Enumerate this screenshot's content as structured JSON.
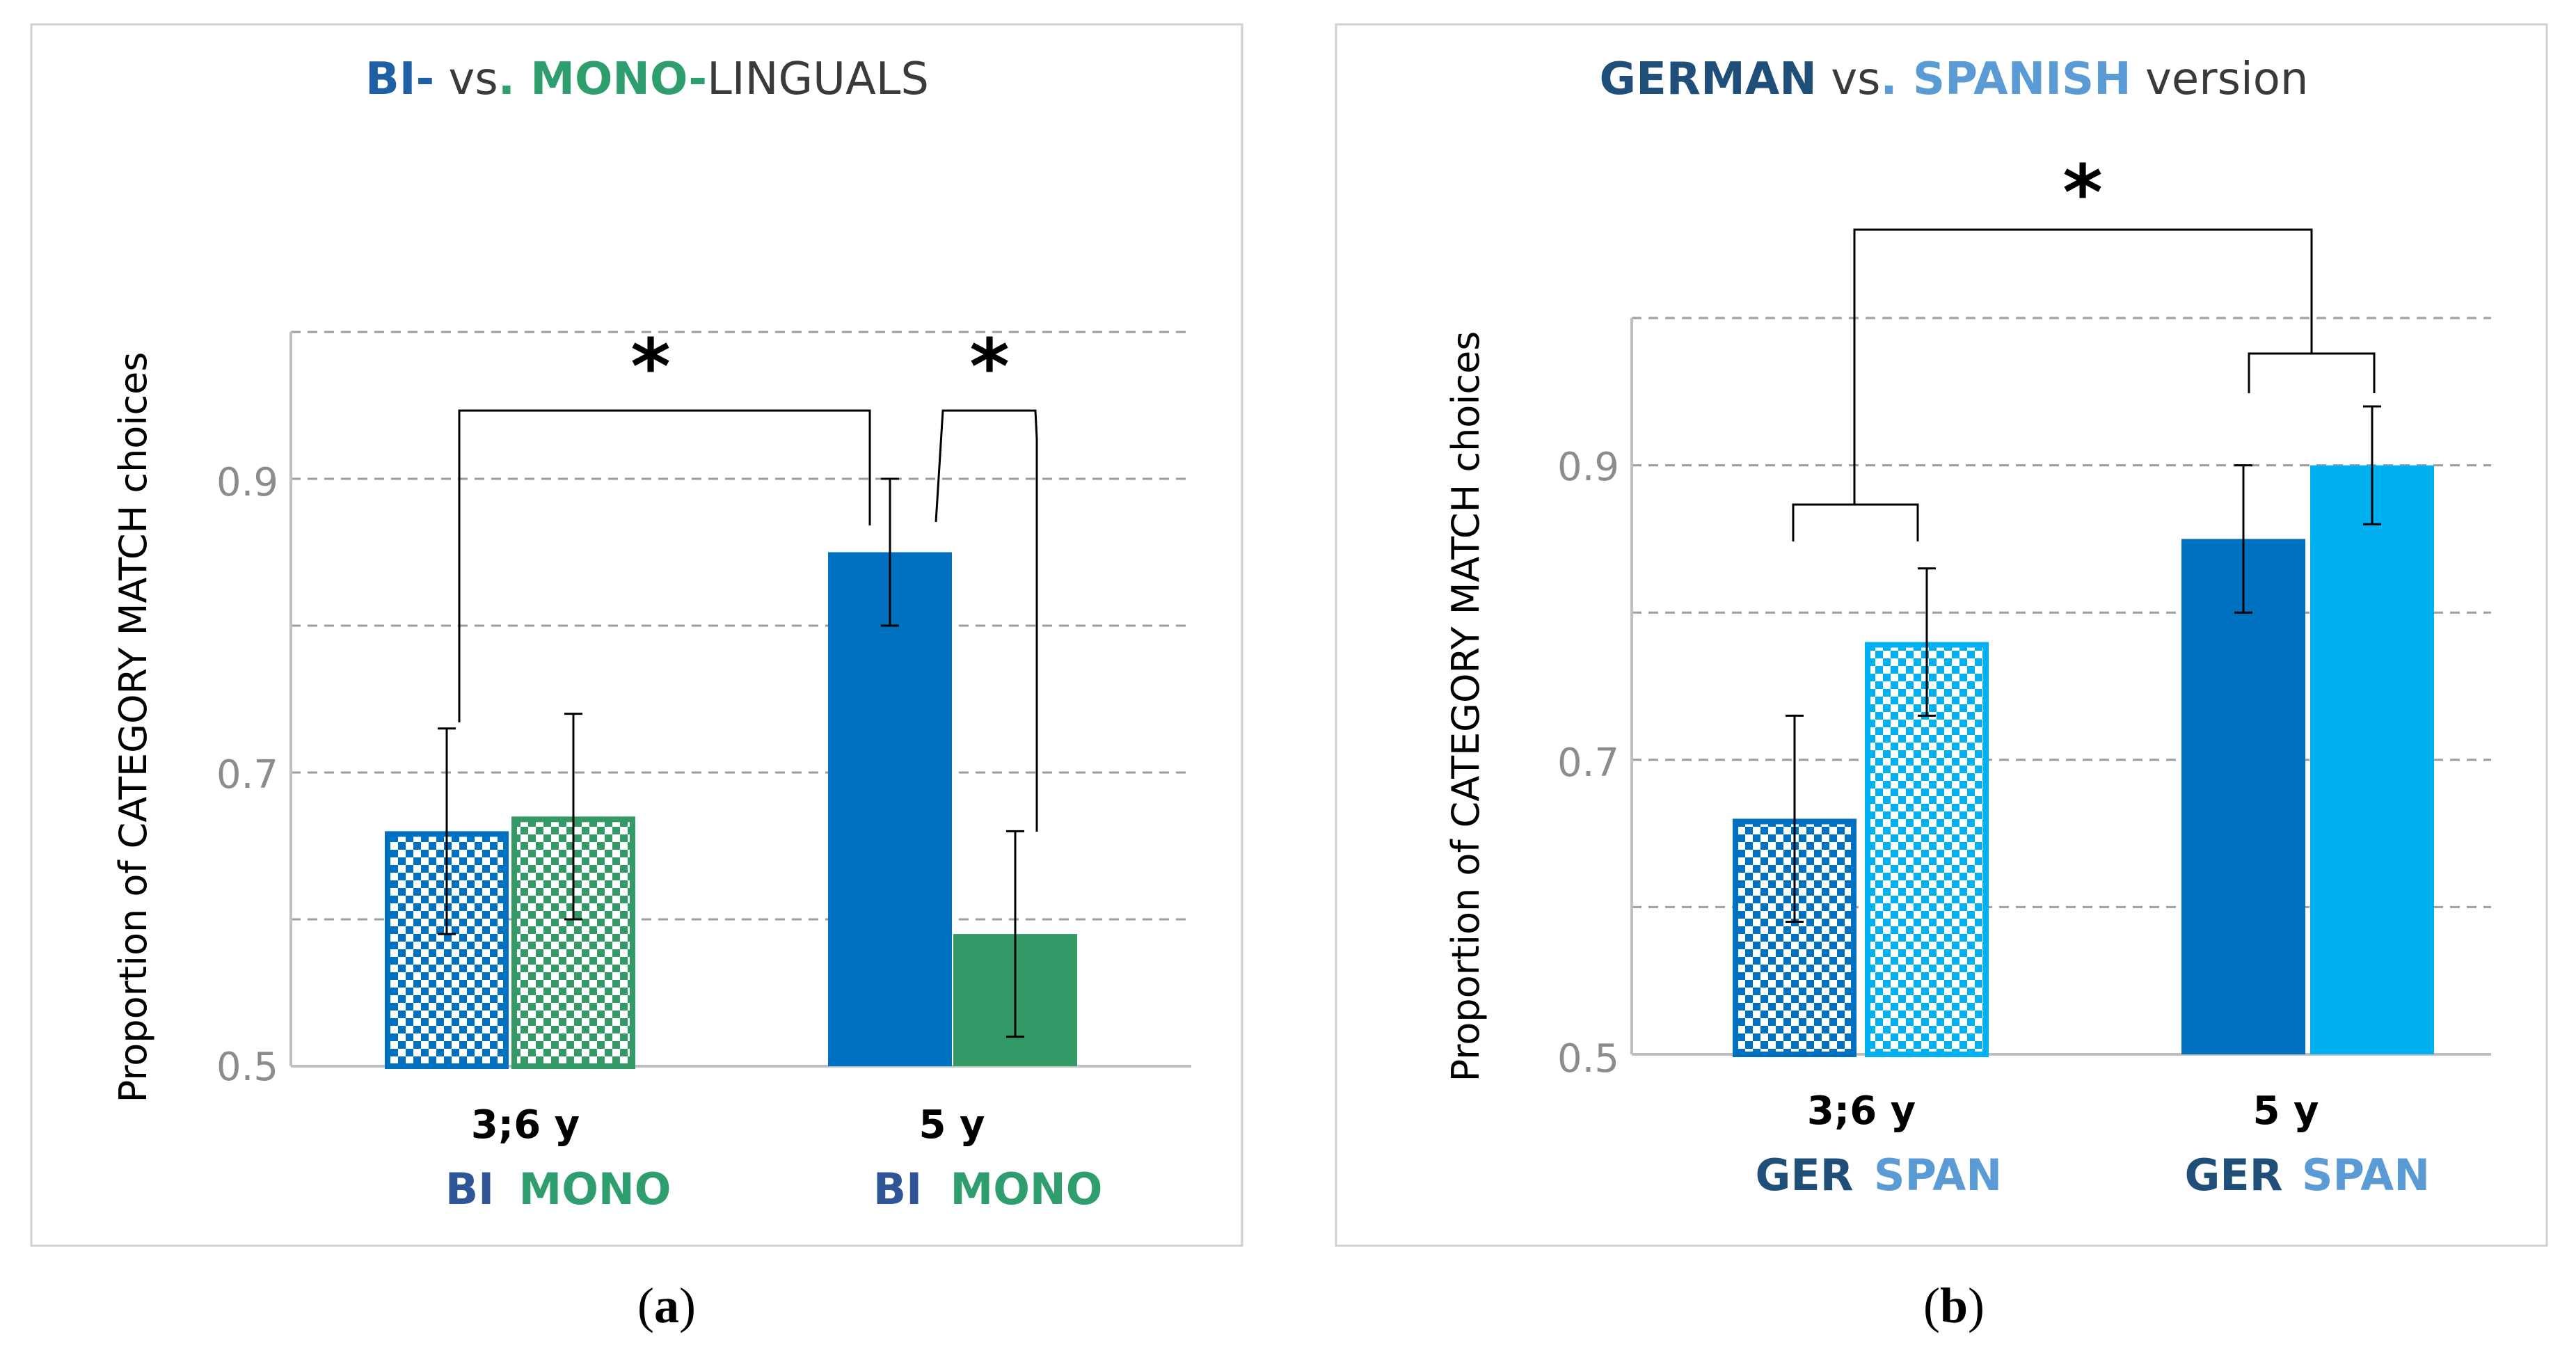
{
  "colors": {
    "bi": "#0070c0",
    "mono": "#339966",
    "ger": "#0070c0",
    "span": "#00b0f0",
    "title_bi": "#1f5fa6",
    "title_mono": "#2e9e6e",
    "title_ger": "#1f4e79",
    "title_span": "#5b9bd5",
    "label_ger": "#1f4e79",
    "label_span": "#5b9bd5",
    "label_bi": "#2f5597",
    "label_mono": "#2e9e6e"
  },
  "chart_data": [
    {
      "type": "bar",
      "panel": "a",
      "caption": {
        "open": "(",
        "letter": "a",
        "close": ")"
      },
      "title": {
        "part1": "BI-",
        "part2": " vs",
        "part3": ". MONO-",
        "part4": "LINGUALS"
      },
      "ylabel": "Proportion of CATEGORY MATCH choices",
      "ylim": [
        0.5,
        1.0
      ],
      "yticks": [
        "0.5",
        "0.7",
        "0.9"
      ],
      "gridlines": [
        0.6,
        0.7,
        0.8,
        0.9,
        1.0
      ],
      "categories": [
        "3;6 y",
        "5 y"
      ],
      "group_labels": [
        "BI",
        "MONO"
      ],
      "series": [
        {
          "name": "BI",
          "values": [
            0.66,
            0.85
          ],
          "err_low": [
            0.59,
            0.8
          ],
          "err_high": [
            0.73,
            0.9
          ],
          "pattern": [
            true,
            false
          ]
        },
        {
          "name": "MONO",
          "values": [
            0.67,
            0.59
          ],
          "err_low": [
            0.6,
            0.52
          ],
          "err_high": [
            0.74,
            0.66
          ],
          "pattern": [
            true,
            false
          ]
        }
      ],
      "significance": [
        {
          "label": "*",
          "between": "BI 3;6 y vs BI 5 y"
        },
        {
          "label": "*",
          "between": "BI 5 y vs MONO 5 y"
        }
      ]
    },
    {
      "type": "bar",
      "panel": "b",
      "caption": {
        "open": "(",
        "letter": "b",
        "close": ")"
      },
      "title": {
        "part1": "GERMAN",
        "part2": " vs",
        "part3": ". SPANISH",
        "part4": " version"
      },
      "ylabel": "Proportion of CATEGORY MATCH choices",
      "ylim": [
        0.5,
        1.0
      ],
      "yticks": [
        "0.5",
        "0.7",
        "0.9"
      ],
      "gridlines": [
        0.6,
        0.7,
        0.8,
        0.9,
        1.0
      ],
      "categories": [
        "3;6 y",
        "5 y"
      ],
      "group_labels": [
        "GER",
        "SPAN"
      ],
      "series": [
        {
          "name": "GER",
          "values": [
            0.66,
            0.85
          ],
          "err_low": [
            0.59,
            0.8
          ],
          "err_high": [
            0.73,
            0.9
          ],
          "pattern": [
            true,
            false
          ]
        },
        {
          "name": "SPAN",
          "values": [
            0.78,
            0.9
          ],
          "err_low": [
            0.73,
            0.86
          ],
          "err_high": [
            0.83,
            0.94
          ],
          "pattern": [
            true,
            false
          ]
        }
      ],
      "significance": [
        {
          "label": "*",
          "between": "3;6 y vs 5 y"
        }
      ]
    }
  ]
}
